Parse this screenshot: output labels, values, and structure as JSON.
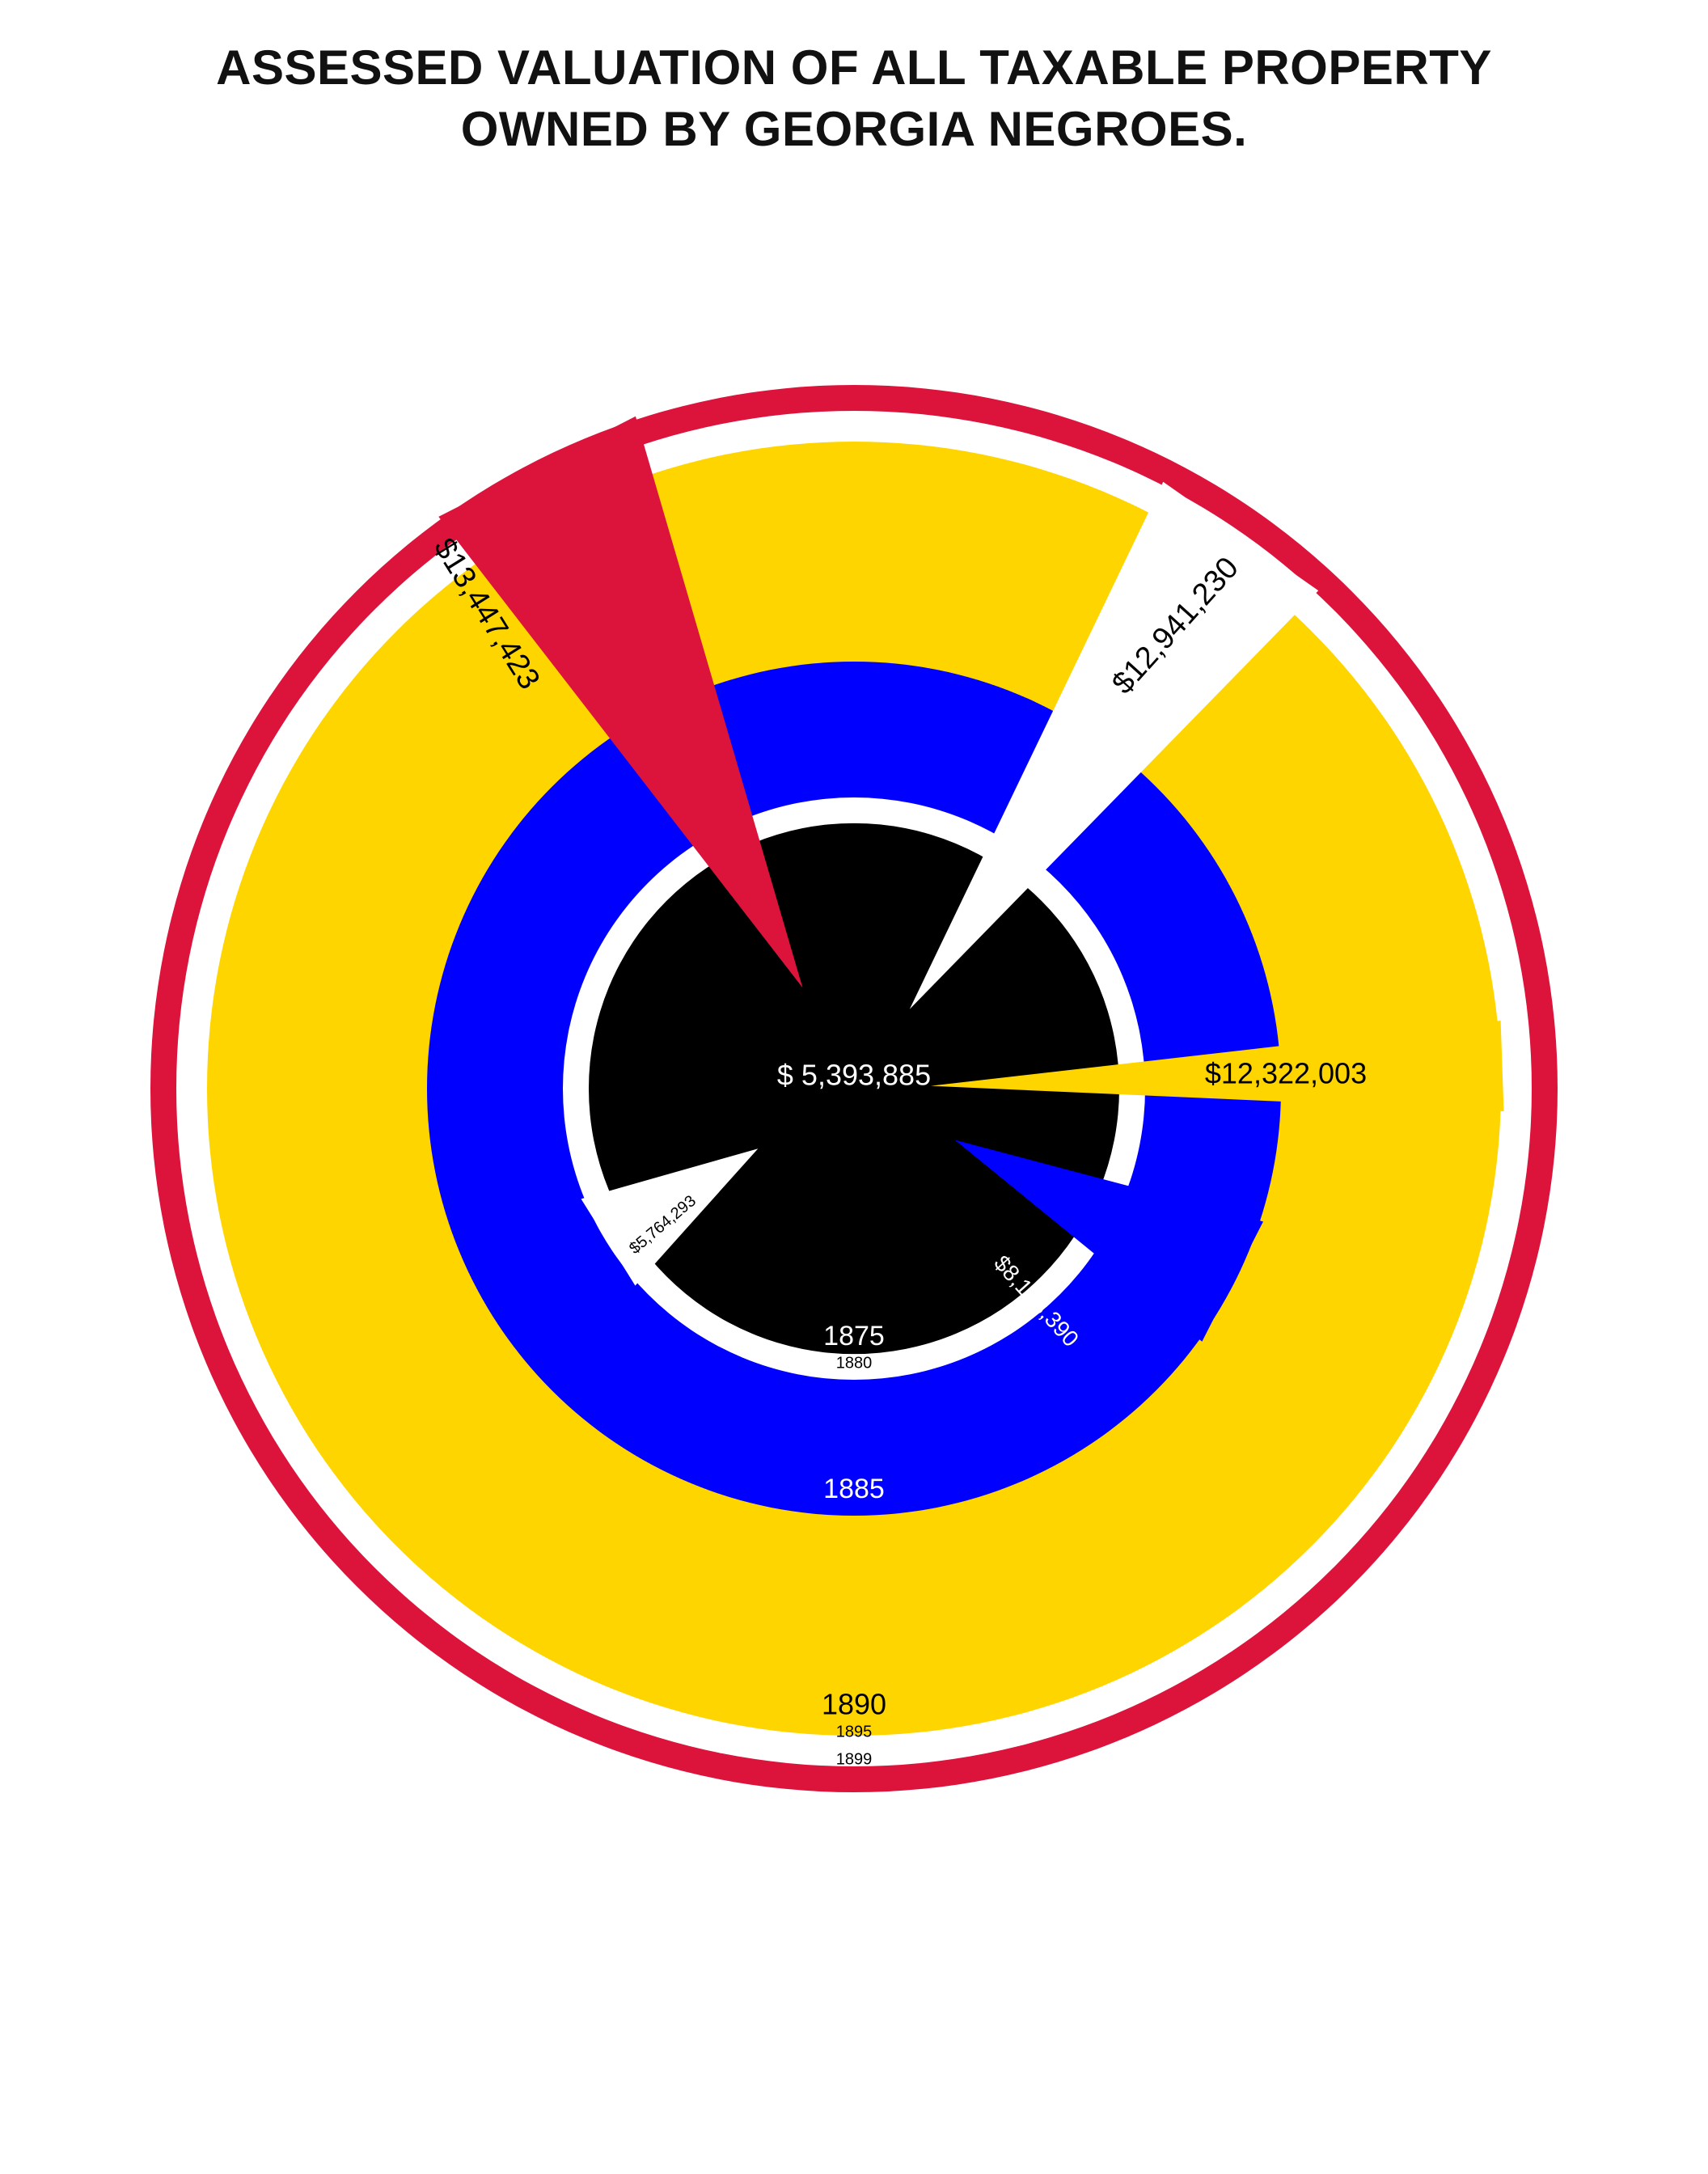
{
  "title_lines": [
    "ASSESSED VALUATION OF ALL TAXABLE PROPERTY",
    "OWNED BY GEORGIA NEGROES."
  ],
  "colors": {
    "1875": "#000000",
    "1880": "#ffffff",
    "1885": "#0000ff",
    "1890": "#ffd500",
    "1895": "#ffffff",
    "1899": "#dc143c",
    "background": "#ffffff"
  },
  "chart_data": {
    "type": "spiral",
    "title": "ASSESSED VALUATION OF ALL TAXABLE PROPERTY OWNED BY GEORGIA NEGROES.",
    "series": [
      {
        "year": "1875",
        "value": 5393885,
        "value_label": "$ 5,393,885"
      },
      {
        "year": "1880",
        "value": 5764293,
        "value_label": "$5,764,293"
      },
      {
        "year": "1885",
        "value": 8153390,
        "value_label": "$8,153,390"
      },
      {
        "year": "1890",
        "value": 12322003,
        "value_label": "$12,322,003"
      },
      {
        "year": "1895",
        "value": 12941230,
        "value_label": "$12,941,230"
      },
      {
        "year": "1899",
        "value": 13447423,
        "value_label": "$13,447,423"
      }
    ]
  }
}
